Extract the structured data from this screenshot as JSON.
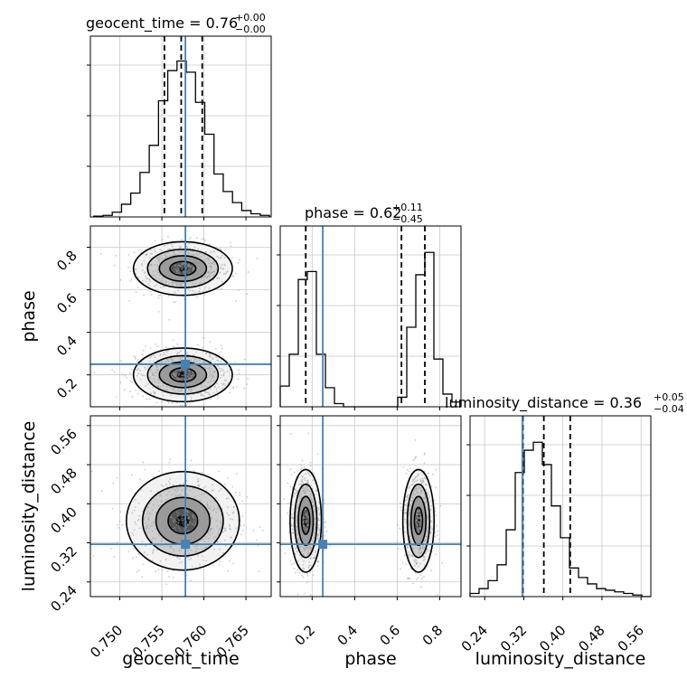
{
  "chart_data": {
    "type": "corner",
    "parameters": [
      "geocent_time",
      "phase",
      "luminosity_distance"
    ],
    "truths": {
      "geocent_time": 0.7578,
      "phase": 0.25,
      "luminosity_distance": 0.317
    },
    "titles": [
      {
        "param": "geocent_time",
        "text": "geocent_time = 0.76",
        "sup": "+0.00",
        "sub": "−0.00"
      },
      {
        "param": "phase",
        "text": "phase = 0.62",
        "sup": "+0.11",
        "sub": "−0.45"
      },
      {
        "param": "luminosity_distance",
        "text": "luminosity_distance = 0.36",
        "sup": "+0.05",
        "sub": "−0.04"
      }
    ],
    "axis_labels": {
      "geocent_time": "geocent_time",
      "phase": "phase",
      "luminosity_distance": "luminosity_distance"
    },
    "ranges": {
      "geocent_time": [
        0.7465,
        0.768
      ],
      "phase": [
        0.05,
        0.9
      ],
      "luminosity_distance": [
        0.21,
        0.58
      ]
    },
    "ticks": {
      "geocent_time": [
        "0.750",
        "0.755",
        "0.760",
        "0.765"
      ],
      "phase": [
        "0.2",
        "0.4",
        "0.6",
        "0.8"
      ],
      "luminosity_distance": [
        "0.24",
        "0.32",
        "0.40",
        "0.48",
        "0.56"
      ]
    },
    "quantiles": {
      "geocent_time": [
        0.7553,
        0.7573,
        0.7598
      ],
      "phase": [
        0.17,
        0.62,
        0.73
      ],
      "luminosity_distance": [
        0.318,
        0.361,
        0.415
      ]
    },
    "histograms": {
      "geocent_time": {
        "edges": [
          0.7469,
          0.748,
          0.7491,
          0.7502,
          0.7513,
          0.7524,
          0.7535,
          0.7546,
          0.7557,
          0.7568,
          0.7579,
          0.759,
          0.7601,
          0.7612,
          0.7623,
          0.7634,
          0.7645,
          0.7656,
          0.7667,
          0.7678
        ],
        "counts": [
          0.005,
          0.01,
          0.03,
          0.08,
          0.15,
          0.28,
          0.45,
          0.73,
          0.92,
          0.98,
          0.91,
          0.72,
          0.52,
          0.27,
          0.16,
          0.09,
          0.04,
          0.02,
          0.01
        ]
      },
      "phase": {
        "edges": [
          0.05,
          0.0925,
          0.135,
          0.1775,
          0.22,
          0.2625,
          0.305,
          0.3475,
          0.39,
          0.4325,
          0.475,
          0.5175,
          0.56,
          0.6025,
          0.645,
          0.6875,
          0.73,
          0.7725,
          0.815,
          0.8575,
          0.9
        ],
        "counts": [
          0.13,
          0.33,
          0.8,
          0.85,
          0.33,
          0.12,
          0.02,
          0.0,
          0.0,
          0.0,
          0.0,
          0.0,
          0.0,
          0.06,
          0.5,
          0.83,
          0.97,
          0.3,
          0.08,
          0.03
        ]
      },
      "luminosity_distance": {
        "edges": [
          0.21,
          0.2285,
          0.247,
          0.2655,
          0.284,
          0.3025,
          0.321,
          0.3395,
          0.358,
          0.3765,
          0.395,
          0.4135,
          0.432,
          0.4505,
          0.469,
          0.4875,
          0.506,
          0.5245,
          0.543,
          0.5615,
          0.58
        ],
        "counts": [
          0.02,
          0.05,
          0.1,
          0.2,
          0.42,
          0.78,
          0.92,
          0.97,
          0.83,
          0.57,
          0.37,
          0.18,
          0.12,
          0.08,
          0.05,
          0.04,
          0.03,
          0.02,
          0.01,
          0.0
        ]
      }
    },
    "density_modes": [
      {
        "x": "geocent_time",
        "y": "phase",
        "centers": [
          [
            0.7575,
            0.7
          ],
          [
            0.7575,
            0.2
          ]
        ],
        "spread": [
          0.0028,
          0.06
        ]
      },
      {
        "x": "geocent_time",
        "y": "luminosity_distance",
        "centers": [
          [
            0.7575,
            0.365
          ]
        ],
        "spread": [
          0.0032,
          0.048
        ]
      },
      {
        "x": "phase",
        "y": "luminosity_distance",
        "centers": [
          [
            0.17,
            0.365
          ],
          [
            0.7,
            0.365
          ]
        ],
        "spread": [
          0.035,
          0.05
        ]
      }
    ],
    "grid": true,
    "colors": {
      "truth": "#4682b4",
      "hist": "#000000",
      "scatter": "#9e9e9e",
      "grid": "#c8c8c8"
    }
  }
}
